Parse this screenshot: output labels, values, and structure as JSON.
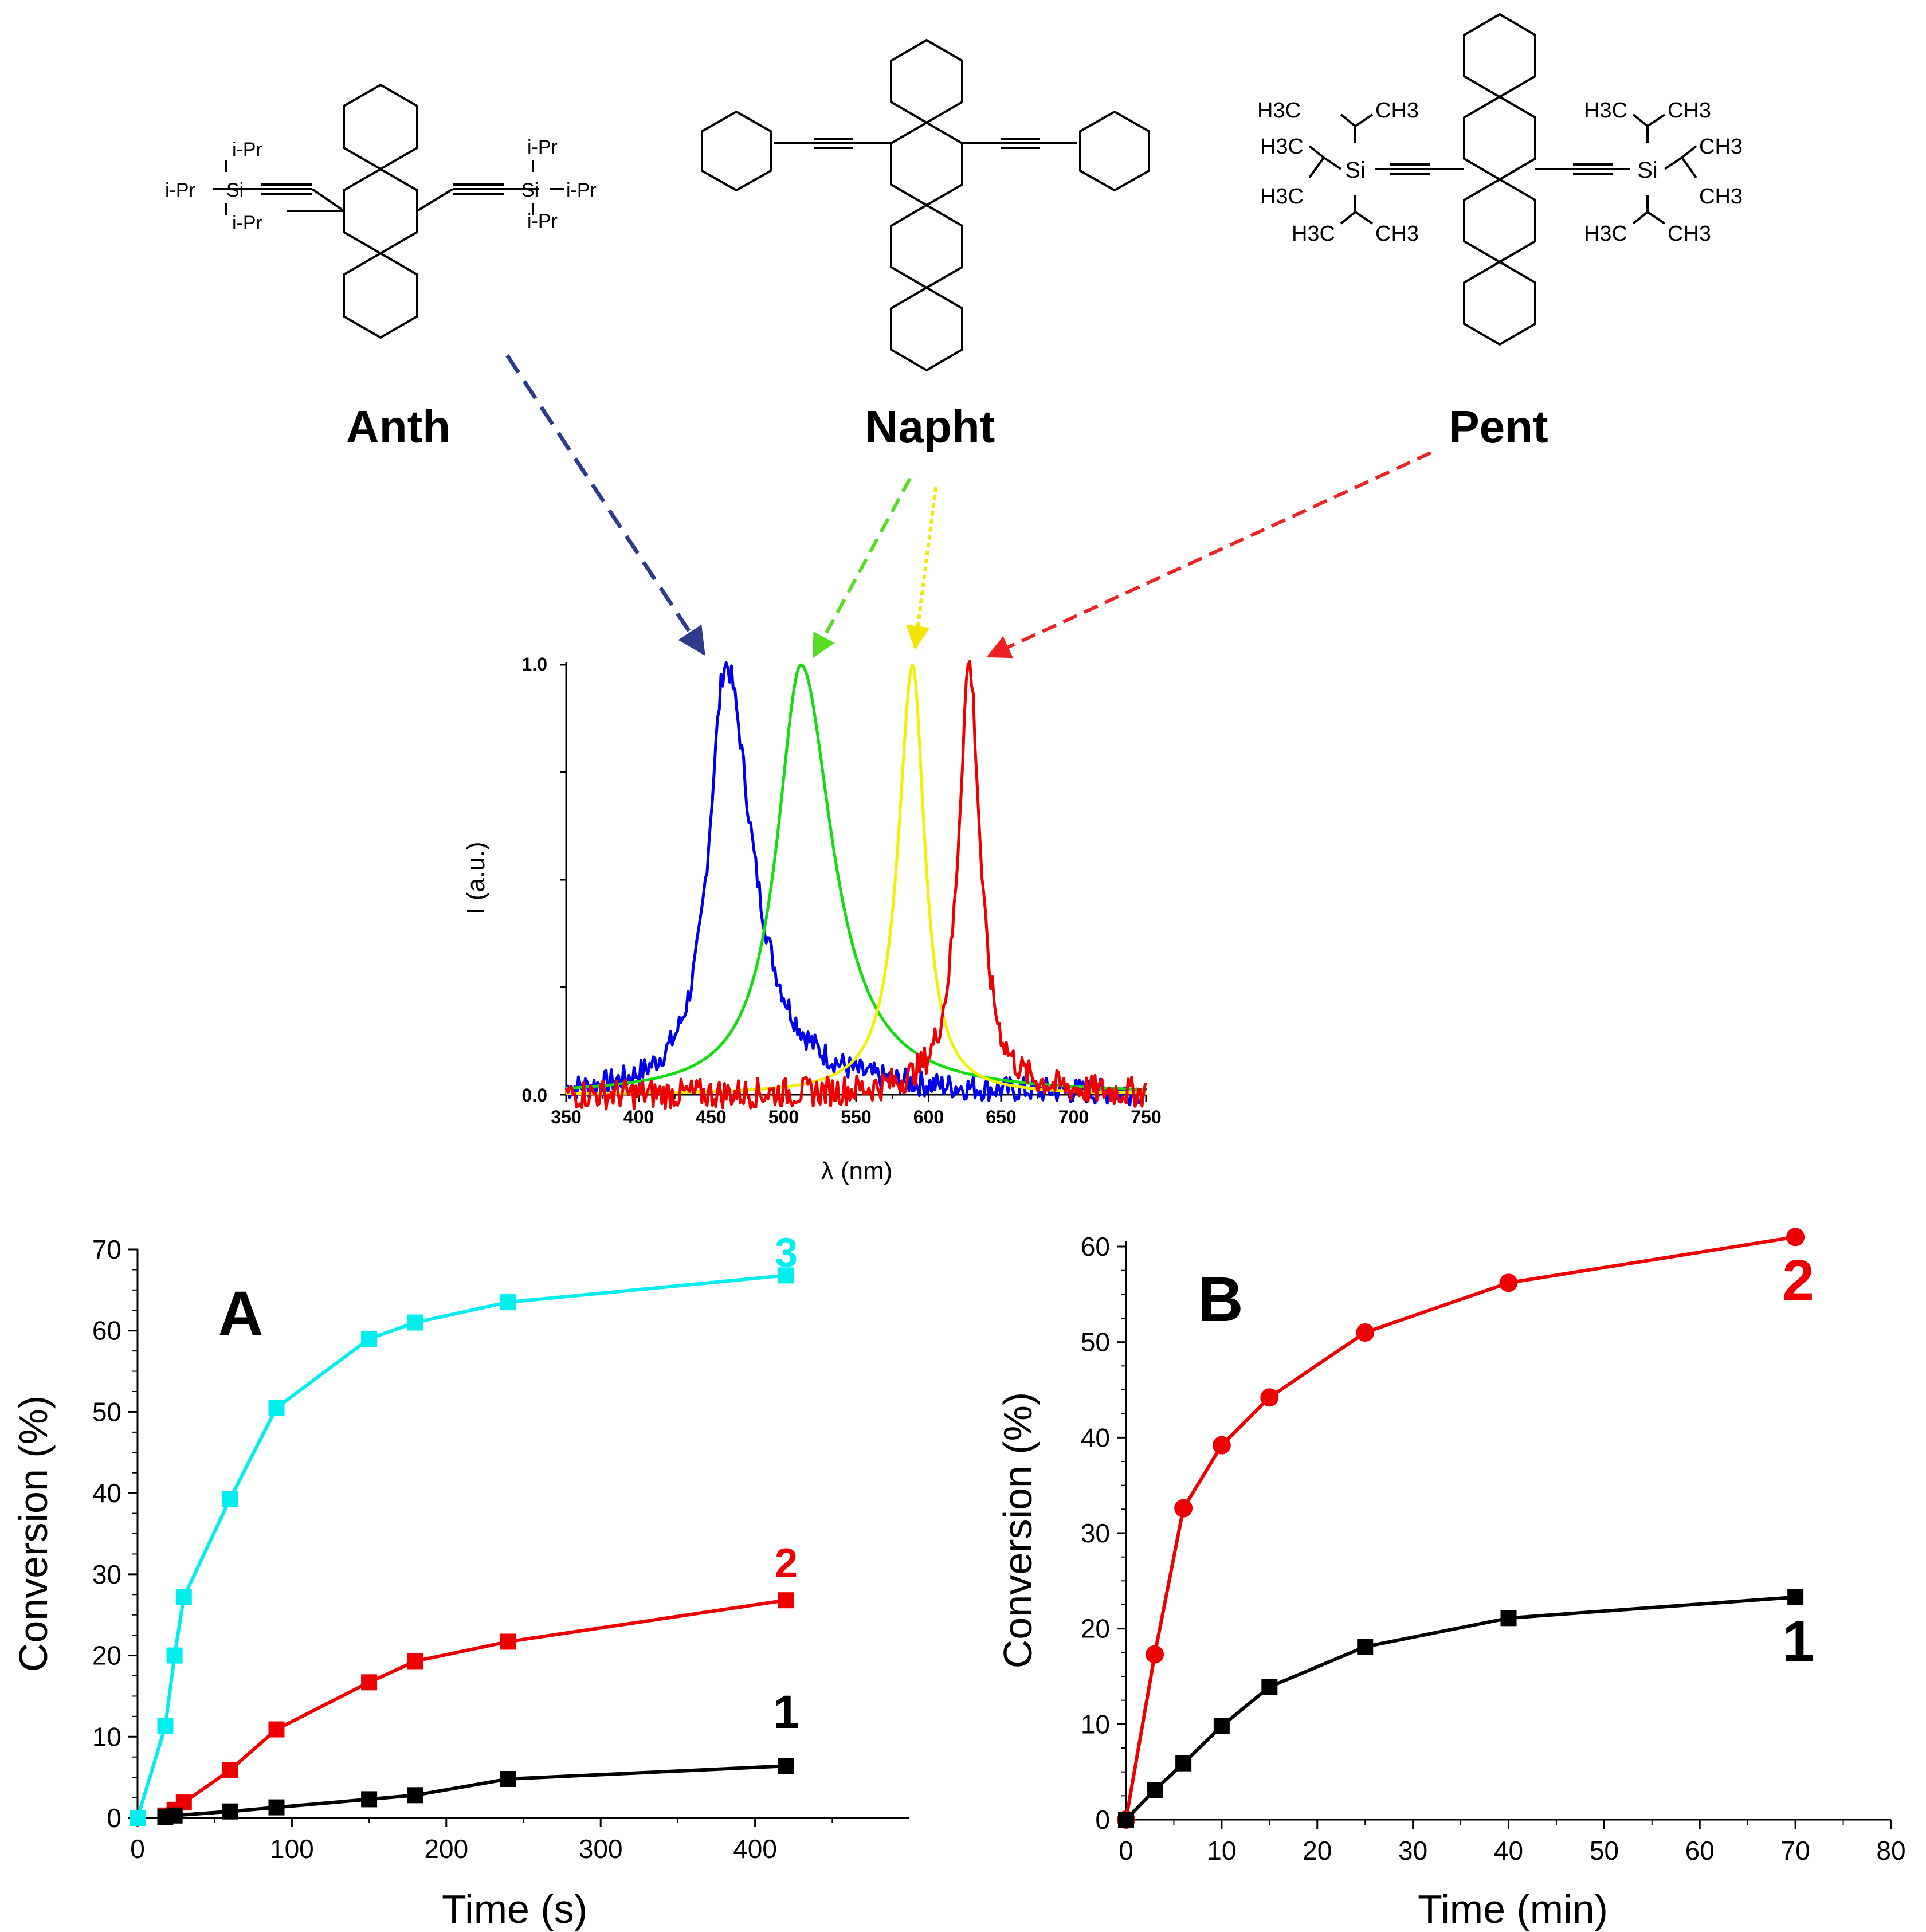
{
  "structures": {
    "anth": {
      "name": "Anth",
      "left_silyl": {
        "top": "i-Pr",
        "side": "i-Pr",
        "si": "Si",
        "bottom": "i-Pr"
      },
      "right_silyl": {
        "top": "i-Pr",
        "side": "i-Pr",
        "si": "Si",
        "bottom": "i-Pr"
      }
    },
    "napht": {
      "name": "Napht"
    },
    "pent": {
      "name": "Pent",
      "left_groups": [
        "H3C",
        "CH3",
        "H3C",
        "H3C",
        "H3C",
        "CH3"
      ],
      "right_groups": [
        "H3C",
        "CH3",
        "CH3",
        "CH3",
        "H3C",
        "CH3"
      ],
      "si": "Si"
    }
  },
  "colors": {
    "anth_arrow": "#2E3A8C",
    "napht_arrow_green": "#55DD22",
    "napht_arrow_yellow": "#F2E600",
    "pent_arrow": "#EE2222",
    "blue": "#0000EE",
    "green": "#11DD11",
    "yellow": "#F2F200",
    "red": "#EE0000",
    "cyan": "#00EEEE",
    "black": "#000000"
  },
  "chart_data": [
    {
      "type": "line",
      "id": "spectrum",
      "xlabel": "λ (nm)",
      "ylabel": "I (a.u.)",
      "xlim": [
        350,
        750
      ],
      "ylim": [
        0,
        1
      ],
      "xticks": [
        "350",
        "400",
        "450",
        "500",
        "550",
        "600",
        "650",
        "700",
        "750"
      ],
      "yticks": [
        "0.0",
        "1.0"
      ],
      "series": [
        {
          "name": "Anth",
          "color": "#0000EE",
          "peak": 460,
          "width_left": 14,
          "width_right": 22,
          "noise": 0.03
        },
        {
          "name": "Napht (green)",
          "color": "#11DD11",
          "peak": 512,
          "width_left": 20,
          "width_right": 26,
          "noise": 0.0
        },
        {
          "name": "Napht (yellow)",
          "color": "#F2F200",
          "peak": 589,
          "width_left": 12,
          "width_right": 10,
          "noise": 0.0
        },
        {
          "name": "Pent",
          "color": "#EE0000",
          "peak": 628,
          "width_left": 9,
          "width_right": 9,
          "noise": 0.035
        }
      ]
    },
    {
      "type": "line",
      "id": "panelA",
      "panel_label": "A",
      "xlabel": "Time (s)",
      "ylabel": "Conversion (%)",
      "xlim": [
        0,
        500
      ],
      "ylim": [
        0,
        70
      ],
      "xticks": [
        0,
        100,
        200,
        300,
        400
      ],
      "yticks": [
        0,
        10,
        20,
        30,
        40,
        50,
        60,
        70
      ],
      "series": [
        {
          "name": "3",
          "label": "3",
          "color": "#00EEEE",
          "marker": "square",
          "x": [
            0,
            18,
            24,
            30,
            60,
            90,
            150,
            180,
            240,
            420
          ],
          "y": [
            0,
            11.3,
            20.0,
            27.2,
            39.3,
            50.5,
            59.0,
            61.0,
            63.5,
            66.8
          ]
        },
        {
          "name": "2",
          "label": "2",
          "color": "#EE0000",
          "marker": "square",
          "x": [
            18,
            24,
            30,
            60,
            90,
            150,
            180,
            240,
            420
          ],
          "y": [
            0.3,
            1.0,
            1.9,
            5.9,
            10.9,
            16.7,
            19.3,
            21.7,
            26.8
          ]
        },
        {
          "name": "1",
          "label": "1",
          "color": "#000000",
          "marker": "square",
          "x": [
            18,
            24,
            60,
            90,
            150,
            180,
            240,
            420
          ],
          "y": [
            0.1,
            0.3,
            0.8,
            1.3,
            2.3,
            2.8,
            4.8,
            6.4
          ]
        }
      ]
    },
    {
      "type": "line",
      "id": "panelB",
      "panel_label": "B",
      "xlabel": "Time (min)",
      "ylabel": "Conversion (%)",
      "xlim": [
        0,
        80
      ],
      "ylim": [
        0,
        60
      ],
      "xticks": [
        0,
        10,
        20,
        30,
        40,
        50,
        60,
        70,
        80
      ],
      "yticks": [
        0,
        10,
        20,
        30,
        40,
        50,
        60
      ],
      "series": [
        {
          "name": "2",
          "label": "2",
          "color": "#EE0000",
          "marker": "circle",
          "x": [
            0,
            3,
            6,
            10,
            15,
            25,
            40,
            70
          ],
          "y": [
            0,
            17.3,
            32.6,
            39.2,
            44.2,
            51.0,
            56.2,
            61.0
          ]
        },
        {
          "name": "1",
          "label": "1",
          "color": "#000000",
          "marker": "square",
          "x": [
            0,
            3,
            6,
            10,
            15,
            25,
            40,
            70
          ],
          "y": [
            0,
            3.1,
            5.9,
            9.8,
            13.9,
            18.1,
            21.1,
            23.3
          ]
        }
      ]
    }
  ]
}
